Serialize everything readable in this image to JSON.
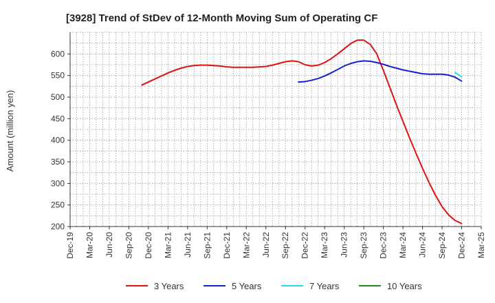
{
  "chart_data": {
    "type": "line",
    "title": "[3928]  Trend of StDev of 12-Month Moving Sum of Operating CF",
    "ylabel": "Amount (million yen)",
    "xlabel": "",
    "ylim": [
      200,
      650
    ],
    "yticks": [
      200,
      250,
      300,
      350,
      400,
      450,
      500,
      550,
      600
    ],
    "x_ticks": [
      "Dec-19",
      "Mar-20",
      "Jun-20",
      "Sep-20",
      "Dec-20",
      "Mar-21",
      "Jun-21",
      "Sep-21",
      "Dec-21",
      "Mar-22",
      "Jun-22",
      "Sep-22",
      "Dec-22",
      "Mar-23",
      "Jun-23",
      "Sep-23",
      "Dec-23",
      "Mar-24",
      "Jun-24",
      "Sep-24",
      "Dec-24",
      "Mar-25"
    ],
    "grid": true,
    "legend_position": "bottom",
    "series": [
      {
        "name": "3 Years",
        "color": "#dd1111",
        "points": [
          [
            "Nov-20",
            528
          ],
          [
            "Dec-20",
            535
          ],
          [
            "Jan-21",
            542
          ],
          [
            "Feb-21",
            549
          ],
          [
            "Mar-21",
            556
          ],
          [
            "Apr-21",
            562
          ],
          [
            "May-21",
            567
          ],
          [
            "Jun-21",
            571
          ],
          [
            "Jul-21",
            573
          ],
          [
            "Aug-21",
            574
          ],
          [
            "Sep-21",
            574
          ],
          [
            "Oct-21",
            573
          ],
          [
            "Nov-21",
            572
          ],
          [
            "Dec-21",
            570
          ],
          [
            "Jan-22",
            569
          ],
          [
            "Feb-22",
            569
          ],
          [
            "Mar-22",
            569
          ],
          [
            "Apr-22",
            569
          ],
          [
            "May-22",
            570
          ],
          [
            "Jun-22",
            571
          ],
          [
            "Jul-22",
            574
          ],
          [
            "Aug-22",
            578
          ],
          [
            "Sep-22",
            582
          ],
          [
            "Oct-22",
            584
          ],
          [
            "Nov-22",
            582
          ],
          [
            "Dec-22",
            575
          ],
          [
            "Jan-23",
            572
          ],
          [
            "Feb-23",
            574
          ],
          [
            "Mar-23",
            580
          ],
          [
            "Apr-23",
            589
          ],
          [
            "May-23",
            600
          ],
          [
            "Jun-23",
            612
          ],
          [
            "Jul-23",
            624
          ],
          [
            "Aug-23",
            632
          ],
          [
            "Sep-23",
            632
          ],
          [
            "Oct-23",
            622
          ],
          [
            "Nov-23",
            600
          ],
          [
            "Dec-23",
            562
          ],
          [
            "Jan-24",
            522
          ],
          [
            "Feb-24",
            482
          ],
          [
            "Mar-24",
            444
          ],
          [
            "Apr-24",
            406
          ],
          [
            "May-24",
            370
          ],
          [
            "Jun-24",
            335
          ],
          [
            "Jul-24",
            302
          ],
          [
            "Aug-24",
            272
          ],
          [
            "Sep-24",
            246
          ],
          [
            "Oct-24",
            227
          ],
          [
            "Nov-24",
            214
          ],
          [
            "Dec-24",
            207
          ]
        ]
      },
      {
        "name": "5 Years",
        "color": "#1122cc",
        "points": [
          [
            "Nov-22",
            535
          ],
          [
            "Dec-22",
            536
          ],
          [
            "Jan-23",
            539
          ],
          [
            "Feb-23",
            543
          ],
          [
            "Mar-23",
            549
          ],
          [
            "Apr-23",
            556
          ],
          [
            "May-23",
            564
          ],
          [
            "Jun-23",
            572
          ],
          [
            "Jul-23",
            578
          ],
          [
            "Aug-23",
            582
          ],
          [
            "Sep-23",
            584
          ],
          [
            "Oct-23",
            583
          ],
          [
            "Nov-23",
            580
          ],
          [
            "Dec-23",
            576
          ],
          [
            "Jan-24",
            571
          ],
          [
            "Feb-24",
            567
          ],
          [
            "Mar-24",
            563
          ],
          [
            "Apr-24",
            560
          ],
          [
            "May-24",
            557
          ],
          [
            "Jun-24",
            554
          ],
          [
            "Jul-24",
            553
          ],
          [
            "Aug-24",
            553
          ],
          [
            "Sep-24",
            553
          ],
          [
            "Oct-24",
            551
          ],
          [
            "Nov-24",
            546
          ],
          [
            "Dec-24",
            537
          ]
        ]
      },
      {
        "name": "7 Years",
        "color": "#22dddd",
        "points": [
          [
            "Nov-24",
            557
          ],
          [
            "Dec-24",
            547
          ]
        ]
      },
      {
        "name": "10 Years",
        "color": "#228822",
        "points": []
      }
    ]
  }
}
